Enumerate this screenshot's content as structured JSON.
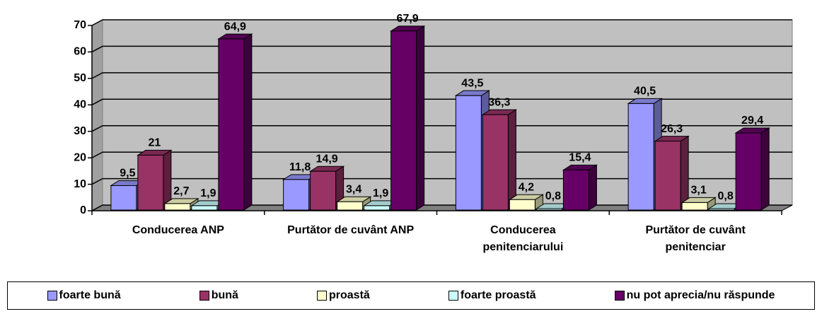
{
  "chart_data": {
    "type": "bar3d",
    "categories": [
      "Conducerea ANP",
      "Purtător de cuvânt ANP",
      "Conducerea penitenciarului",
      "Purtător de cuvânt penitenciar"
    ],
    "series": [
      {
        "name": "foarte bună",
        "color": "#9999ff",
        "values": [
          9.5,
          11.8,
          43.5,
          40.5
        ],
        "value_labels": [
          "9,5",
          "11,8",
          "43,5",
          "40,5"
        ]
      },
      {
        "name": "bună",
        "color": "#993366",
        "values": [
          21,
          14.9,
          36.3,
          26.3
        ],
        "value_labels": [
          "21",
          "14,9",
          "36,3",
          "26,3"
        ]
      },
      {
        "name": "proastă",
        "color": "#ffffcc",
        "values": [
          2.7,
          3.4,
          4.2,
          3.1
        ],
        "value_labels": [
          "2,7",
          "3,4",
          "4,2",
          "3,1"
        ]
      },
      {
        "name": "foarte proastă",
        "color": "#ccffff",
        "values": [
          1.9,
          1.9,
          0.8,
          0.8
        ],
        "value_labels": [
          "1,9",
          "1,9",
          "0,8",
          "0,8"
        ]
      },
      {
        "name": "nu pot aprecia/nu răspunde",
        "color": "#660066",
        "values": [
          64.9,
          67.9,
          15.4,
          29.4
        ],
        "value_labels": [
          "64,9",
          "67,9",
          "15,4",
          "29,4"
        ]
      }
    ],
    "ylim": [
      0,
      70
    ],
    "yticks": [
      0,
      10,
      20,
      30,
      40,
      50,
      60,
      70
    ],
    "grid": true,
    "legend": "bottom"
  }
}
